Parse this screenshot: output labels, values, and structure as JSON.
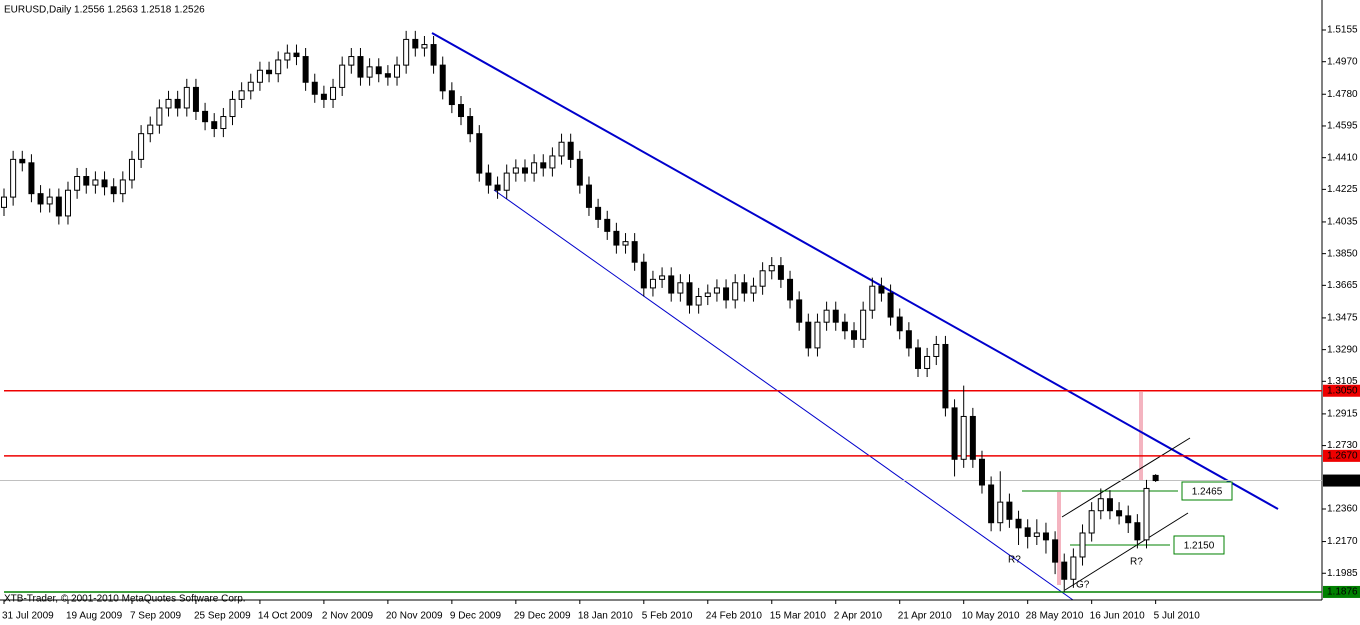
{
  "chart_data": {
    "type": "candlestick",
    "title": "EURUSD,Daily  1.2556 1.2563 1.2518 1.2526",
    "copyright": "XTB-Trader, © 2001-2010 MetaQuotes Software Corp.",
    "ylim": [
      1.1829,
      1.533
    ],
    "yticks": [
      1.5155,
      {
        "value": 1.497,
        "label": "1.4970"
      },
      {
        "value": 1.478,
        "label": "1.4780"
      },
      1.4595,
      {
        "value": 1.441,
        "label": "1.4410"
      },
      1.4225,
      1.4035,
      {
        "value": 1.385,
        "label": "1.3850"
      },
      1.3665,
      1.3475,
      {
        "value": 1.329,
        "label": "1.3290"
      },
      1.3105,
      1.2915,
      {
        "value": 1.273,
        "label": "1.2730"
      },
      {
        "value": 1.236,
        "label": "1.2360"
      },
      {
        "value": 1.217,
        "label": "1.2170"
      },
      1.1985
    ],
    "date_labels": [
      "31 Jul 2009",
      "19 Aug 2009",
      "7 Sep 2009",
      "25 Sep 2009",
      "14 Oct 2009",
      "2 Nov 2009",
      "20 Nov 2009",
      "9 Dec 2009",
      "29 Dec 2009",
      "18 Jan 2010",
      "5 Feb 2010",
      "24 Feb 2010",
      "15 Mar 2010",
      "2 Apr 2010",
      "21 Apr 2010",
      "10 May 2010",
      "28 May 2010",
      "16 Jun 2010",
      "5 Jul 2010"
    ],
    "levels": [
      {
        "value": 1.305,
        "label": "1.3050",
        "color": "#ee0000"
      },
      {
        "value": 1.267,
        "label": "1.2670",
        "color": "#ee0000"
      },
      {
        "value": 1.1876,
        "label": "1.1876",
        "color": "#008000"
      }
    ],
    "current": {
      "value": 1.2526,
      "label": "1.2526",
      "color": "#000000"
    },
    "boxed_levels": [
      {
        "value": 1.2465,
        "label": "1.2465",
        "color": "#008000"
      },
      {
        "value": 1.215,
        "label": "1.2150",
        "color": "#008000"
      }
    ],
    "annotations": [
      "R?",
      "R?",
      "G?"
    ],
    "candles": [
      [
        1.412,
        1.423,
        1.407,
        1.418
      ],
      [
        1.418,
        1.445,
        1.413,
        1.44
      ],
      [
        1.44,
        1.445,
        1.433,
        1.438
      ],
      [
        1.438,
        1.443,
        1.415,
        1.42
      ],
      [
        1.42,
        1.425,
        1.409,
        1.414
      ],
      [
        1.414,
        1.423,
        1.409,
        1.418
      ],
      [
        1.418,
        1.423,
        1.402,
        1.407
      ],
      [
        1.407,
        1.427,
        1.402,
        1.422
      ],
      [
        1.422,
        1.435,
        1.417,
        1.43
      ],
      [
        1.43,
        1.435,
        1.42,
        1.425
      ],
      [
        1.425,
        1.433,
        1.42,
        1.428
      ],
      [
        1.428,
        1.433,
        1.419,
        1.424
      ],
      [
        1.424,
        1.429,
        1.415,
        1.42
      ],
      [
        1.42,
        1.433,
        1.415,
        1.428
      ],
      [
        1.428,
        1.445,
        1.423,
        1.44
      ],
      [
        1.44,
        1.46,
        1.435,
        1.455
      ],
      [
        1.455,
        1.465,
        1.45,
        1.46
      ],
      [
        1.46,
        1.475,
        1.455,
        1.47
      ],
      [
        1.47,
        1.48,
        1.465,
        1.475
      ],
      [
        1.475,
        1.48,
        1.465,
        1.47
      ],
      [
        1.47,
        1.487,
        1.465,
        1.482
      ],
      [
        1.482,
        1.487,
        1.463,
        1.468
      ],
      [
        1.468,
        1.473,
        1.457,
        1.462
      ],
      [
        1.462,
        1.467,
        1.453,
        1.458
      ],
      [
        1.458,
        1.47,
        1.453,
        1.465
      ],
      [
        1.465,
        1.48,
        1.46,
        1.475
      ],
      [
        1.475,
        1.485,
        1.47,
        1.48
      ],
      [
        1.48,
        1.49,
        1.475,
        1.485
      ],
      [
        1.485,
        1.497,
        1.48,
        1.492
      ],
      [
        1.492,
        1.497,
        1.485,
        1.49
      ],
      [
        1.49,
        1.503,
        1.485,
        1.498
      ],
      [
        1.498,
        1.507,
        1.493,
        1.502
      ],
      [
        1.502,
        1.507,
        1.495,
        1.5
      ],
      [
        1.5,
        1.505,
        1.48,
        1.485
      ],
      [
        1.485,
        1.49,
        1.473,
        1.478
      ],
      [
        1.478,
        1.483,
        1.47,
        1.475
      ],
      [
        1.475,
        1.487,
        1.47,
        1.482
      ],
      [
        1.482,
        1.5,
        1.477,
        1.495
      ],
      [
        1.495,
        1.505,
        1.49,
        1.5
      ],
      [
        1.5,
        1.505,
        1.483,
        1.488
      ],
      [
        1.488,
        1.499,
        1.483,
        1.494
      ],
      [
        1.494,
        1.499,
        1.485,
        1.49
      ],
      [
        1.49,
        1.495,
        1.483,
        1.488
      ],
      [
        1.488,
        1.5,
        1.483,
        1.495
      ],
      [
        1.495,
        1.515,
        1.49,
        1.51
      ],
      [
        1.51,
        1.515,
        1.5,
        1.505
      ],
      [
        1.505,
        1.512,
        1.5,
        1.507
      ],
      [
        1.507,
        1.512,
        1.49,
        1.495
      ],
      [
        1.495,
        1.5,
        1.475,
        1.48
      ],
      [
        1.48,
        1.485,
        1.467,
        1.472
      ],
      [
        1.472,
        1.477,
        1.46,
        1.465
      ],
      [
        1.465,
        1.47,
        1.45,
        1.455
      ],
      [
        1.455,
        1.46,
        1.427,
        1.432
      ],
      [
        1.432,
        1.437,
        1.42,
        1.425
      ],
      [
        1.425,
        1.43,
        1.417,
        1.422
      ],
      [
        1.422,
        1.437,
        1.417,
        1.432
      ],
      [
        1.432,
        1.44,
        1.427,
        1.435
      ],
      [
        1.435,
        1.44,
        1.427,
        1.432
      ],
      [
        1.432,
        1.443,
        1.427,
        1.438
      ],
      [
        1.438,
        1.443,
        1.43,
        1.435
      ],
      [
        1.435,
        1.447,
        1.43,
        1.442
      ],
      [
        1.442,
        1.455,
        1.437,
        1.45
      ],
      [
        1.45,
        1.455,
        1.435,
        1.44
      ],
      [
        1.44,
        1.445,
        1.42,
        1.425
      ],
      [
        1.425,
        1.43,
        1.407,
        1.412
      ],
      [
        1.412,
        1.417,
        1.4,
        1.405
      ],
      [
        1.405,
        1.41,
        1.393,
        1.398
      ],
      [
        1.398,
        1.403,
        1.385,
        1.39
      ],
      [
        1.39,
        1.397,
        1.385,
        1.392
      ],
      [
        1.392,
        1.397,
        1.375,
        1.38
      ],
      [
        1.38,
        1.385,
        1.36,
        1.365
      ],
      [
        1.365,
        1.375,
        1.36,
        1.37
      ],
      [
        1.37,
        1.377,
        1.365,
        1.372
      ],
      [
        1.372,
        1.377,
        1.357,
        1.362
      ],
      [
        1.362,
        1.373,
        1.357,
        1.368
      ],
      [
        1.368,
        1.373,
        1.35,
        1.355
      ],
      [
        1.355,
        1.365,
        1.35,
        1.36
      ],
      [
        1.36,
        1.367,
        1.355,
        1.362
      ],
      [
        1.362,
        1.37,
        1.357,
        1.365
      ],
      [
        1.365,
        1.37,
        1.353,
        1.358
      ],
      [
        1.358,
        1.373,
        1.353,
        1.368
      ],
      [
        1.368,
        1.373,
        1.357,
        1.362
      ],
      [
        1.362,
        1.371,
        1.357,
        1.366
      ],
      [
        1.366,
        1.38,
        1.361,
        1.375
      ],
      [
        1.375,
        1.383,
        1.37,
        1.378
      ],
      [
        1.378,
        1.383,
        1.365,
        1.37
      ],
      [
        1.37,
        1.375,
        1.353,
        1.358
      ],
      [
        1.358,
        1.363,
        1.34,
        1.345
      ],
      [
        1.345,
        1.35,
        1.325,
        1.33
      ],
      [
        1.33,
        1.35,
        1.325,
        1.345
      ],
      [
        1.345,
        1.357,
        1.34,
        1.352
      ],
      [
        1.352,
        1.357,
        1.34,
        1.345
      ],
      [
        1.345,
        1.35,
        1.335,
        1.34
      ],
      [
        1.34,
        1.345,
        1.33,
        1.335
      ],
      [
        1.335,
        1.357,
        1.33,
        1.352
      ],
      [
        1.352,
        1.371,
        1.347,
        1.366
      ],
      [
        1.366,
        1.371,
        1.357,
        1.362
      ],
      [
        1.362,
        1.367,
        1.343,
        1.348
      ],
      [
        1.348,
        1.353,
        1.335,
        1.34
      ],
      [
        1.34,
        1.345,
        1.325,
        1.33
      ],
      [
        1.33,
        1.335,
        1.313,
        1.318
      ],
      [
        1.318,
        1.33,
        1.313,
        1.325
      ],
      [
        1.325,
        1.337,
        1.32,
        1.332
      ],
      [
        1.332,
        1.337,
        1.29,
        1.295
      ],
      [
        1.295,
        1.3,
        1.255,
        1.265
      ],
      [
        1.265,
        1.308,
        1.26,
        1.29
      ],
      [
        1.29,
        1.295,
        1.26,
        1.265
      ],
      [
        1.265,
        1.27,
        1.245,
        1.25
      ],
      [
        1.25,
        1.255,
        1.223,
        1.228
      ],
      [
        1.228,
        1.258,
        1.223,
        1.24
      ],
      [
        1.24,
        1.245,
        1.225,
        1.23
      ],
      [
        1.23,
        1.235,
        1.215,
        1.225
      ],
      [
        1.225,
        1.23,
        1.213,
        1.22
      ],
      [
        1.22,
        1.23,
        1.215,
        1.222
      ],
      [
        1.222,
        1.228,
        1.21,
        1.218
      ],
      [
        1.218,
        1.223,
        1.198,
        1.205
      ],
      [
        1.205,
        1.21,
        1.1876,
        1.195
      ],
      [
        1.195,
        1.213,
        1.19,
        1.208
      ],
      [
        1.208,
        1.227,
        1.203,
        1.222
      ],
      [
        1.222,
        1.24,
        1.217,
        1.235
      ],
      [
        1.235,
        1.248,
        1.23,
        1.242
      ],
      [
        1.242,
        1.247,
        1.23,
        1.235
      ],
      [
        1.235,
        1.24,
        1.227,
        1.232
      ],
      [
        1.232,
        1.238,
        1.222,
        1.228
      ],
      [
        1.228,
        1.233,
        1.213,
        1.218
      ],
      [
        1.218,
        1.253,
        1.213,
        1.248
      ],
      [
        1.2556,
        1.2563,
        1.2518,
        1.2526
      ]
    ]
  }
}
